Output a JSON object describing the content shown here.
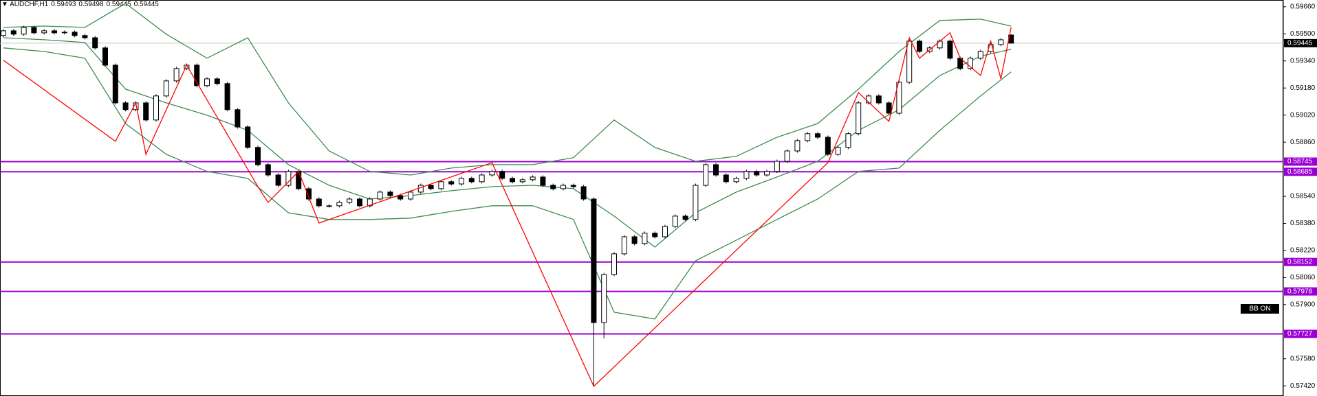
{
  "chart_data": {
    "type": "candlestick",
    "title": "AUDCHF,H1",
    "ylim": [
      0.5736,
      0.597
    ],
    "yticks": [
      {
        "value": 0.5966,
        "label": "0.59660"
      },
      {
        "value": 0.595,
        "label": "0.59500"
      },
      {
        "value": 0.5934,
        "label": "0.59340"
      },
      {
        "value": 0.5918,
        "label": "0.59180"
      },
      {
        "value": 0.5902,
        "label": "0.59020"
      },
      {
        "value": 0.5886,
        "label": "0.58860"
      },
      {
        "value": 0.5854,
        "label": "0.58540"
      },
      {
        "value": 0.5838,
        "label": "0.58380"
      },
      {
        "value": 0.5822,
        "label": "0.58220"
      },
      {
        "value": 0.5806,
        "label": "0.58060"
      },
      {
        "value": 0.579,
        "label": "0.57900"
      },
      {
        "value": 0.5758,
        "label": "0.57580"
      },
      {
        "value": 0.5742,
        "label": "0.57420"
      }
    ],
    "up_color": "#ffffff",
    "down_color": "#000000",
    "open": [
      0.5949,
      0.59518,
      0.59498,
      0.59538,
      0.59506,
      0.59518,
      0.59506,
      0.5951,
      0.5949,
      0.59477,
      0.59417,
      0.59315,
      0.59092,
      0.59052,
      0.59092,
      0.58991,
      0.59133,
      0.59222,
      0.59295,
      0.59315,
      0.59194,
      0.59234,
      0.59206,
      0.59052,
      0.5895,
      0.58829,
      0.58727,
      0.58666,
      0.58605,
      0.58687,
      0.58585,
      0.58524,
      0.58484,
      0.58484,
      0.58504,
      0.58524,
      0.58484,
      0.58524,
      0.58565,
      0.58544,
      0.58524,
      0.58565,
      0.58605,
      0.58585,
      0.58626,
      0.58613,
      0.58646,
      0.58626,
      0.58666,
      0.58687,
      0.58646,
      0.58626,
      0.58638,
      0.58654,
      0.58605,
      0.58585,
      0.58605,
      0.58597,
      0.58524,
      0.57794,
      0.58078,
      0.582,
      0.58301,
      0.58261,
      0.58322,
      0.58301,
      0.58362,
      0.58423,
      0.58403,
      0.58605,
      0.58727,
      0.58666,
      0.58626,
      0.58646,
      0.58687,
      0.58666,
      0.58687,
      0.58747,
      0.58808,
      0.58869,
      0.5891,
      0.58889,
      0.58788,
      0.58829,
      0.5891,
      0.59092,
      0.59133,
      0.59092,
      0.59031,
      0.59214,
      0.59457,
      0.59396,
      0.59417,
      0.59457,
      0.59356,
      0.59295,
      0.59356,
      0.59396,
      0.59437,
      0.59493
    ],
    "high": [
      0.59528,
      0.59528,
      0.59548,
      0.59548,
      0.59528,
      0.59528,
      0.5952,
      0.5952,
      0.595,
      0.59487,
      0.59427,
      0.59325,
      0.59102,
      0.59102,
      0.59102,
      0.59143,
      0.59232,
      0.59305,
      0.59325,
      0.59325,
      0.59244,
      0.59244,
      0.59216,
      0.59062,
      0.5896,
      0.58839,
      0.58737,
      0.58676,
      0.58697,
      0.58697,
      0.58595,
      0.58534,
      0.58494,
      0.58514,
      0.58534,
      0.58534,
      0.58534,
      0.58575,
      0.58575,
      0.58554,
      0.58575,
      0.58615,
      0.58615,
      0.58636,
      0.58636,
      0.58656,
      0.58656,
      0.58676,
      0.58697,
      0.58697,
      0.58656,
      0.58648,
      0.58664,
      0.58664,
      0.58615,
      0.58615,
      0.58615,
      0.58607,
      0.58534,
      0.58088,
      0.5821,
      0.58311,
      0.58311,
      0.58332,
      0.58332,
      0.58372,
      0.58433,
      0.58433,
      0.58615,
      0.58737,
      0.58737,
      0.58676,
      0.58656,
      0.58697,
      0.58697,
      0.58697,
      0.58757,
      0.58818,
      0.58879,
      0.5892,
      0.5892,
      0.58899,
      0.58839,
      0.5892,
      0.59102,
      0.59143,
      0.59143,
      0.59102,
      0.59224,
      0.59467,
      0.59467,
      0.59427,
      0.59467,
      0.59467,
      0.59366,
      0.59366,
      0.59406,
      0.59447,
      0.59475,
      0.59498
    ],
    "low": [
      0.5948,
      0.59488,
      0.59488,
      0.59496,
      0.59496,
      0.59496,
      0.59496,
      0.5948,
      0.59467,
      0.59407,
      0.59305,
      0.59082,
      0.59042,
      0.59042,
      0.58981,
      0.58981,
      0.59123,
      0.59212,
      0.59285,
      0.59184,
      0.59184,
      0.59196,
      0.59042,
      0.5894,
      0.58819,
      0.58717,
      0.58656,
      0.58595,
      0.58595,
      0.58575,
      0.58514,
      0.58474,
      0.58474,
      0.58474,
      0.58494,
      0.58474,
      0.58474,
      0.58514,
      0.58534,
      0.58514,
      0.58514,
      0.58555,
      0.58575,
      0.58575,
      0.58603,
      0.58603,
      0.58616,
      0.58616,
      0.58656,
      0.58636,
      0.58616,
      0.58616,
      0.58628,
      0.58595,
      0.58575,
      0.58575,
      0.58587,
      0.58514,
      0.5742,
      0.577,
      0.58068,
      0.5819,
      0.58251,
      0.58251,
      0.58291,
      0.58291,
      0.58352,
      0.58393,
      0.58393,
      0.58595,
      0.58656,
      0.58616,
      0.58616,
      0.58636,
      0.58656,
      0.58656,
      0.58677,
      0.58737,
      0.58798,
      0.58859,
      0.58879,
      0.58778,
      0.58778,
      0.58819,
      0.589,
      0.59082,
      0.59082,
      0.59021,
      0.59021,
      0.59204,
      0.59386,
      0.59386,
      0.59407,
      0.59346,
      0.59285,
      0.59285,
      0.59346,
      0.59386,
      0.59427,
      0.59445
    ],
    "close": [
      0.59518,
      0.59498,
      0.59538,
      0.59506,
      0.59518,
      0.59506,
      0.5951,
      0.5949,
      0.59477,
      0.59417,
      0.59315,
      0.59092,
      0.59052,
      0.59092,
      0.58991,
      0.59133,
      0.59222,
      0.59295,
      0.59315,
      0.59194,
      0.59234,
      0.59206,
      0.59052,
      0.5895,
      0.58829,
      0.58727,
      0.58666,
      0.58605,
      0.58687,
      0.58585,
      0.58524,
      0.58484,
      0.58484,
      0.58504,
      0.58524,
      0.58484,
      0.58524,
      0.58565,
      0.58544,
      0.58524,
      0.58565,
      0.58605,
      0.58585,
      0.58626,
      0.58613,
      0.58646,
      0.58626,
      0.58666,
      0.58687,
      0.58646,
      0.58626,
      0.58638,
      0.58654,
      0.58605,
      0.58585,
      0.58605,
      0.58597,
      0.58524,
      0.57794,
      0.58078,
      0.582,
      0.58301,
      0.58261,
      0.58322,
      0.58301,
      0.58362,
      0.58423,
      0.58403,
      0.58605,
      0.58727,
      0.58666,
      0.58626,
      0.58646,
      0.58687,
      0.58666,
      0.58687,
      0.58747,
      0.58808,
      0.58869,
      0.5891,
      0.58889,
      0.58788,
      0.58829,
      0.5891,
      0.59092,
      0.59133,
      0.59092,
      0.59031,
      0.59214,
      0.59457,
      0.59396,
      0.59417,
      0.59457,
      0.59356,
      0.59295,
      0.59356,
      0.59396,
      0.59437,
      0.59465,
      0.59445
    ],
    "bands": {
      "color": "#3d8b4f",
      "x": [
        0,
        4,
        8,
        12,
        16,
        20,
        24,
        28,
        32,
        36,
        40,
        44,
        48,
        52,
        56,
        60,
        64,
        68,
        72,
        76,
        80,
        84,
        88,
        92,
        96,
        99
      ],
      "upper": [
        0.59538,
        0.59546,
        0.59538,
        0.5968,
        0.59498,
        0.59356,
        0.59477,
        0.59092,
        0.58808,
        0.58687,
        0.58666,
        0.58707,
        0.58727,
        0.58727,
        0.58768,
        0.58991,
        0.58829,
        0.58747,
        0.58776,
        0.58889,
        0.5897,
        0.59173,
        0.59396,
        0.59579,
        0.59587,
        0.59546
      ],
      "middle": [
        0.59477,
        0.59465,
        0.59449,
        0.59173,
        0.59092,
        0.59019,
        0.5893,
        0.58727,
        0.58605,
        0.58524,
        0.58544,
        0.58573,
        0.58597,
        0.58605,
        0.58585,
        0.58423,
        0.5824,
        0.58443,
        0.58565,
        0.58654,
        0.58747,
        0.5893,
        0.59052,
        0.59254,
        0.59368,
        0.59409
      ],
      "lower": [
        0.59417,
        0.59396,
        0.59356,
        0.5897,
        0.58788,
        0.58687,
        0.58646,
        0.58443,
        0.58403,
        0.58403,
        0.58411,
        0.58451,
        0.58484,
        0.58484,
        0.58403,
        0.57855,
        0.57815,
        0.58159,
        0.58281,
        0.58403,
        0.58524,
        0.58687,
        0.58707,
        0.5893,
        0.59133,
        0.59275
      ]
    },
    "zigzag": {
      "color": "#ff0000",
      "x": [
        0,
        11,
        13,
        14,
        18,
        25,
        26,
        29,
        31,
        48,
        58,
        81,
        84,
        87,
        89,
        90,
        93,
        94,
        96,
        97,
        98,
        99
      ],
      "values": [
        0.59344,
        0.58865,
        0.59092,
        0.58788,
        0.59315,
        0.58597,
        0.58504,
        0.58687,
        0.58382,
        0.58739,
        0.57417,
        0.58739,
        0.59153,
        0.58983,
        0.59477,
        0.59356,
        0.59506,
        0.59356,
        0.59254,
        0.59457,
        0.59234,
        0.59538
      ]
    },
    "levels": {
      "color": "#9b00d3",
      "values": [
        0.58745,
        0.58685,
        0.58152,
        0.57978,
        0.57727
      ]
    },
    "current_line_color": "#c8c8c8",
    "indicator_label": "BB ON"
  }
}
